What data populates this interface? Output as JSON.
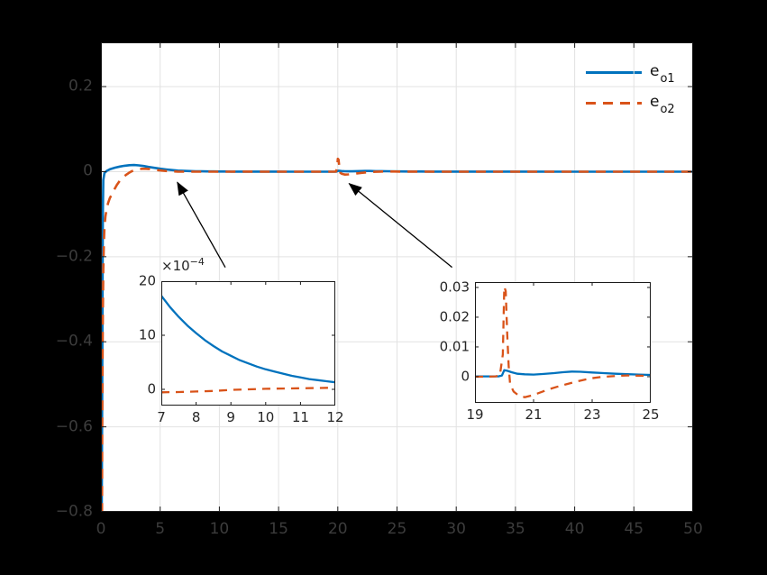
{
  "figure": {
    "bg": "#000000",
    "plot_bg": "#ffffff",
    "axis_color": "#1a1a1a",
    "grid_color": "#e2e2e2",
    "outer_label_color": "#3c3c3c",
    "inner_label_color": "#262626",
    "arrow_color": "#000000"
  },
  "legend": {
    "items": [
      {
        "base": "e",
        "sub": "o1",
        "series": "e_o1"
      },
      {
        "base": "e",
        "sub": "o2",
        "series": "e_o2"
      }
    ]
  },
  "exponent_label": {
    "base": "×10",
    "sup": "−4"
  },
  "chart_data": [
    {
      "id": "main",
      "type": "line",
      "grid": true,
      "xlim": [
        0,
        50
      ],
      "ylim": [
        -0.8,
        0.304
      ],
      "xticks": [
        {
          "v": 0,
          "label": "0"
        },
        {
          "v": 5,
          "label": "5"
        },
        {
          "v": 10,
          "label": "10"
        },
        {
          "v": 15,
          "label": "15"
        },
        {
          "v": 20,
          "label": "20"
        },
        {
          "v": 25,
          "label": "25"
        },
        {
          "v": 30,
          "label": "30"
        },
        {
          "v": 35,
          "label": "35"
        },
        {
          "v": 40,
          "label": "40"
        },
        {
          "v": 45,
          "label": "45"
        },
        {
          "v": 50,
          "label": "50"
        }
      ],
      "yticks": [
        {
          "v": 0.2,
          "label": "0.2"
        },
        {
          "v": 0,
          "label": "0"
        },
        {
          "v": -0.2,
          "label": "−0.2"
        },
        {
          "v": -0.4,
          "label": "−0.4"
        },
        {
          "v": -0.6,
          "label": "−0.6"
        },
        {
          "v": -0.8,
          "label": "−0.8"
        }
      ],
      "series": [
        {
          "name": "e_o1",
          "color": "#0072BD",
          "dash": null,
          "points": [
            [
              0,
              -0.8
            ],
            [
              0.07,
              -0.8
            ],
            [
              0.12,
              -0.4
            ],
            [
              0.16,
              -0.1
            ],
            [
              0.2,
              -0.02
            ],
            [
              0.3,
              -0.003
            ],
            [
              0.5,
              0.002
            ],
            [
              0.8,
              0.006
            ],
            [
              1.2,
              0.0095
            ],
            [
              1.6,
              0.012
            ],
            [
              2.0,
              0.014
            ],
            [
              2.4,
              0.0152
            ],
            [
              2.8,
              0.0155
            ],
            [
              3.2,
              0.0148
            ],
            [
              3.6,
              0.0132
            ],
            [
              4.0,
              0.0112
            ],
            [
              4.5,
              0.009
            ],
            [
              5.0,
              0.007
            ],
            [
              5.5,
              0.0052
            ],
            [
              6.0,
              0.0037
            ],
            [
              6.5,
              0.0025
            ],
            [
              7.0,
              0.00173
            ],
            [
              7.5,
              0.00134
            ],
            [
              8.0,
              0.00104
            ],
            [
              8.5,
              0.0008
            ],
            [
              9.0,
              0.00062
            ],
            [
              9.5,
              0.00048
            ],
            [
              10.0,
              0.00037
            ],
            [
              10.5,
              0.00029
            ],
            [
              11.0,
              0.00022
            ],
            [
              11.5,
              0.00017
            ],
            [
              12.0,
              0.00013
            ],
            [
              13,
              8e-05
            ],
            [
              14,
              5e-05
            ],
            [
              15,
              3e-05
            ],
            [
              16,
              2e-05
            ],
            [
              17,
              1e-05
            ],
            [
              18,
              1e-05
            ],
            [
              19,
              0
            ],
            [
              19.8,
              0
            ],
            [
              19.92,
              0.0003
            ],
            [
              20.0,
              0.0022
            ],
            [
              20.15,
              0.0019
            ],
            [
              20.35,
              0.0013
            ],
            [
              20.6,
              0.0009
            ],
            [
              20.9,
              0.0007
            ],
            [
              21.2,
              0.0008
            ],
            [
              21.6,
              0.0011
            ],
            [
              22.0,
              0.0015
            ],
            [
              22.3,
              0.0017
            ],
            [
              22.7,
              0.0016
            ],
            [
              23.2,
              0.0013
            ],
            [
              23.7,
              0.0011
            ],
            [
              24.2,
              0.0009
            ],
            [
              25,
              0.0006
            ],
            [
              26,
              0.00042
            ],
            [
              27,
              0.0003
            ],
            [
              28,
              0.0002
            ],
            [
              30,
              0.0001
            ],
            [
              32,
              6e-05
            ],
            [
              35,
              3e-05
            ],
            [
              40,
              1e-05
            ],
            [
              45,
              0
            ],
            [
              50,
              0
            ]
          ]
        },
        {
          "name": "e_o2",
          "color": "#D95319",
          "dash": "11 8",
          "points": [
            [
              0,
              -0.8
            ],
            [
              0.09,
              -0.8
            ],
            [
              0.11,
              -0.62
            ],
            [
              0.13,
              -0.48
            ],
            [
              0.16,
              -0.34
            ],
            [
              0.2,
              -0.23
            ],
            [
              0.25,
              -0.165
            ],
            [
              0.3,
              -0.13
            ],
            [
              0.38,
              -0.105
            ],
            [
              0.48,
              -0.088
            ],
            [
              0.6,
              -0.074
            ],
            [
              0.75,
              -0.062
            ],
            [
              0.95,
              -0.052
            ],
            [
              1.15,
              -0.041
            ],
            [
              1.35,
              -0.031
            ],
            [
              1.6,
              -0.021
            ],
            [
              1.85,
              -0.014
            ],
            [
              2.1,
              -0.008
            ],
            [
              2.35,
              -0.003
            ],
            [
              2.6,
              0.001
            ],
            [
              2.9,
              0.0042
            ],
            [
              3.2,
              0.006
            ],
            [
              3.5,
              0.0068
            ],
            [
              3.8,
              0.0067
            ],
            [
              4.1,
              0.006
            ],
            [
              4.5,
              0.0047
            ],
            [
              4.9,
              0.0033
            ],
            [
              5.3,
              0.0021
            ],
            [
              5.7,
              0.0012
            ],
            [
              6.1,
              0.0006
            ],
            [
              6.5,
              0.0002
            ],
            [
              7.0,
              -6e-05
            ],
            [
              7.5,
              -5e-05
            ],
            [
              8.0,
              -4e-05
            ],
            [
              8.5,
              -3e-05
            ],
            [
              9.0,
              -1e-05
            ],
            [
              9.5,
              0
            ],
            [
              10.0,
              1e-05
            ],
            [
              11,
              2e-05
            ],
            [
              12,
              3e-05
            ],
            [
              13,
              2e-05
            ],
            [
              14,
              2e-05
            ],
            [
              15,
              1e-05
            ],
            [
              16,
              1e-05
            ],
            [
              17,
              0
            ],
            [
              19.7,
              0
            ],
            [
              19.85,
              0.0004
            ],
            [
              19.95,
              0.0075
            ],
            [
              20.0,
              0.0302
            ],
            [
              20.06,
              0.0285
            ],
            [
              20.12,
              0.013
            ],
            [
              20.17,
              0.003
            ],
            [
              20.22,
              -0.0028
            ],
            [
              20.35,
              -0.0052
            ],
            [
              20.6,
              -0.0068
            ],
            [
              20.9,
              -0.0064
            ],
            [
              21.2,
              -0.0054
            ],
            [
              21.6,
              -0.0041
            ],
            [
              22.0,
              -0.0029
            ],
            [
              22.4,
              -0.0018
            ],
            [
              22.8,
              -0.001
            ],
            [
              23.2,
              -0.0003
            ],
            [
              23.6,
              0.0001
            ],
            [
              24.0,
              0.00035
            ],
            [
              24.4,
              0.0004
            ],
            [
              24.8,
              0.0003
            ],
            [
              25.2,
              0.00024
            ],
            [
              26,
              0.00012
            ],
            [
              27,
              6e-05
            ],
            [
              28,
              2e-05
            ],
            [
              30,
              0
            ],
            [
              35,
              0
            ],
            [
              40,
              0
            ],
            [
              45,
              0
            ],
            [
              50,
              0
            ]
          ]
        }
      ]
    },
    {
      "id": "inset1",
      "type": "line",
      "grid": false,
      "xlim": [
        7,
        12
      ],
      "ylim": [
        -0.0003,
        0.002
      ],
      "xticks": [
        {
          "v": 7,
          "label": "7"
        },
        {
          "v": 8,
          "label": "8"
        },
        {
          "v": 9,
          "label": "9"
        },
        {
          "v": 10,
          "label": "10"
        },
        {
          "v": 11,
          "label": "11"
        },
        {
          "v": 12,
          "label": "12"
        }
      ],
      "yticks": [
        {
          "v": 0,
          "label": "0"
        },
        {
          "v": 0.001,
          "label": "10"
        },
        {
          "v": 0.002,
          "label": "20"
        }
      ],
      "y_multiplier": "1e-4",
      "series": [
        {
          "name": "e_o1",
          "color": "#0072BD",
          "dash": null,
          "points": [
            [
              7,
              0.00173
            ],
            [
              7.25,
              0.00152
            ],
            [
              7.5,
              0.00134
            ],
            [
              7.75,
              0.00118
            ],
            [
              8,
              0.00104
            ],
            [
              8.25,
              0.00091
            ],
            [
              8.5,
              0.0008
            ],
            [
              8.75,
              0.0007
            ],
            [
              9,
              0.00062
            ],
            [
              9.25,
              0.00054
            ],
            [
              9.5,
              0.00048
            ],
            [
              9.75,
              0.00042
            ],
            [
              10,
              0.00037
            ],
            [
              10.25,
              0.00033
            ],
            [
              10.5,
              0.00029
            ],
            [
              10.75,
              0.00025
            ],
            [
              11,
              0.00022
            ],
            [
              11.25,
              0.00019
            ],
            [
              11.5,
              0.00017
            ],
            [
              11.75,
              0.00015
            ],
            [
              12,
              0.00013
            ]
          ]
        },
        {
          "name": "e_o2",
          "color": "#D95319",
          "dash": "9 7",
          "points": [
            [
              7,
              -5.5e-05
            ],
            [
              7.5,
              -5e-05
            ],
            [
              8,
              -4e-05
            ],
            [
              8.5,
              -3e-05
            ],
            [
              9,
              -1e-05
            ],
            [
              9.5,
              0
            ],
            [
              10,
              1e-05
            ],
            [
              10.5,
              1.5e-05
            ],
            [
              11,
              2e-05
            ],
            [
              11.5,
              2.5e-05
            ],
            [
              12,
              3e-05
            ]
          ]
        }
      ]
    },
    {
      "id": "inset2",
      "type": "line",
      "grid": false,
      "xlim": [
        19,
        25
      ],
      "ylim": [
        -0.0088,
        0.0318
      ],
      "xticks": [
        {
          "v": 19,
          "label": "19"
        },
        {
          "v": 21,
          "label": "21"
        },
        {
          "v": 23,
          "label": "23"
        },
        {
          "v": 25,
          "label": "25"
        }
      ],
      "yticks": [
        {
          "v": 0,
          "label": "0"
        },
        {
          "v": 0.01,
          "label": "0.01"
        },
        {
          "v": 0.02,
          "label": "0.02"
        },
        {
          "v": 0.03,
          "label": "0.03"
        }
      ],
      "series": [
        {
          "name": "e_o1",
          "color": "#0072BD",
          "dash": null,
          "points": [
            [
              19,
              0.0001
            ],
            [
              19.5,
              0.0001
            ],
            [
              19.8,
              0.0001
            ],
            [
              19.92,
              0.0004
            ],
            [
              20.0,
              0.0022
            ],
            [
              20.1,
              0.002
            ],
            [
              20.25,
              0.0015
            ],
            [
              20.45,
              0.001
            ],
            [
              20.7,
              0.0008
            ],
            [
              21.0,
              0.0007
            ],
            [
              21.3,
              0.0009
            ],
            [
              21.7,
              0.0012
            ],
            [
              22.0,
              0.0015
            ],
            [
              22.3,
              0.0017
            ],
            [
              22.6,
              0.00165
            ],
            [
              23.0,
              0.0014
            ],
            [
              23.4,
              0.0012
            ],
            [
              23.8,
              0.001
            ],
            [
              24.2,
              0.00085
            ],
            [
              24.6,
              0.0007
            ],
            [
              25,
              0.0006
            ]
          ]
        },
        {
          "name": "e_o2",
          "color": "#D95319",
          "dash": "9 7",
          "points": [
            [
              19,
              0
            ],
            [
              19.4,
              0
            ],
            [
              19.7,
              0.0001
            ],
            [
              19.85,
              0.0004
            ],
            [
              19.95,
              0.0075
            ],
            [
              20.0,
              0.0302
            ],
            [
              20.05,
              0.0288
            ],
            [
              20.1,
              0.014
            ],
            [
              20.15,
              0.0035
            ],
            [
              20.2,
              -0.0026
            ],
            [
              20.32,
              -0.005
            ],
            [
              20.5,
              -0.0064
            ],
            [
              20.7,
              -0.0069
            ],
            [
              20.95,
              -0.0063
            ],
            [
              21.2,
              -0.0054
            ],
            [
              21.5,
              -0.0043
            ],
            [
              21.8,
              -0.0034
            ],
            [
              22.1,
              -0.0026
            ],
            [
              22.4,
              -0.0018
            ],
            [
              22.7,
              -0.0011
            ],
            [
              23.0,
              -0.0005
            ],
            [
              23.3,
              -0.0001
            ],
            [
              23.6,
              0.0001
            ],
            [
              23.9,
              0.0003
            ],
            [
              24.2,
              0.0004
            ],
            [
              24.5,
              0.00035
            ],
            [
              24.8,
              0.0003
            ],
            [
              25,
              0.00025
            ]
          ]
        }
      ]
    }
  ],
  "annotations": [
    {
      "type": "arrow",
      "from": [
        10.5,
        -0.225
      ],
      "to": [
        6.45,
        -0.025
      ]
    },
    {
      "type": "arrow",
      "from": [
        29.65,
        -0.225
      ],
      "to": [
        20.95,
        -0.028
      ]
    }
  ]
}
